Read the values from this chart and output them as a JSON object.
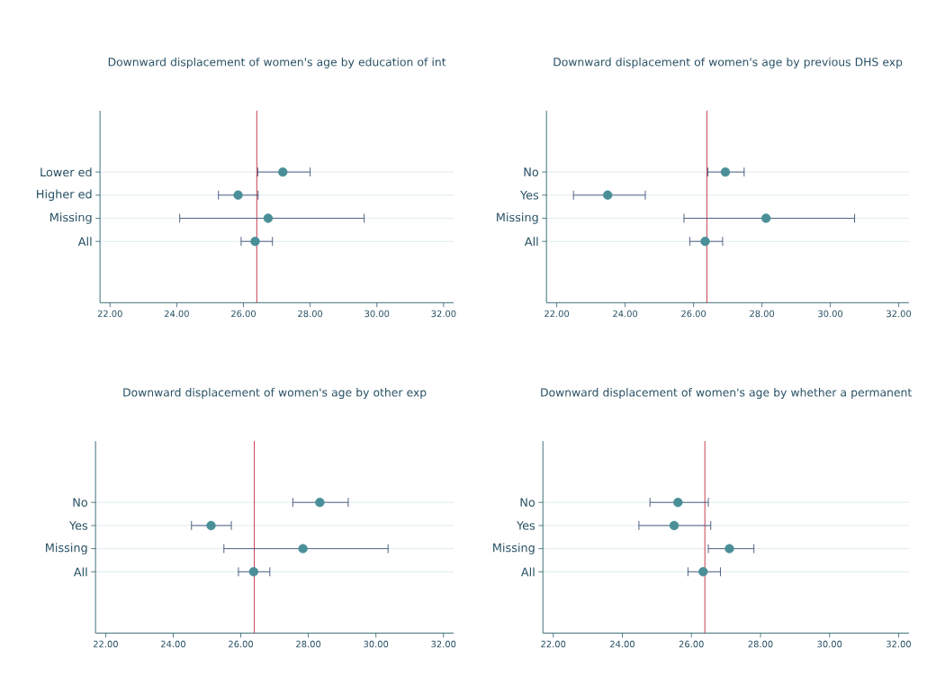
{
  "chart_data": [
    {
      "type": "scatter",
      "orientation": "horizontal",
      "title": "Downward displacement of women's age by education of int",
      "categories": [
        "Lower ed",
        "Higher ed",
        "Missing",
        "All"
      ],
      "values": [
        27.18,
        25.84,
        26.74,
        26.35
      ],
      "errors": [
        [
          26.43,
          28.0
        ],
        [
          25.25,
          26.44
        ],
        [
          24.09,
          29.62
        ],
        [
          25.93,
          26.87
        ]
      ],
      "color": "#4a8f98",
      "grid": "y",
      "xlim": [
        21.7,
        32.3
      ],
      "xticks": [
        {
          "value": 22,
          "label": "22.00"
        },
        {
          "value": 24,
          "label": "24.00"
        },
        {
          "value": 26,
          "label": "26.00"
        },
        {
          "value": 28,
          "label": "28.00"
        },
        {
          "value": 30,
          "label": "30.00"
        },
        {
          "value": 32,
          "label": "32.00"
        }
      ],
      "ref_lines": [
        {
          "axis": "x",
          "value": 26.4,
          "color": "#c0283c"
        }
      ]
    },
    {
      "type": "scatter",
      "orientation": "horizontal",
      "title": "Downward displacement of women's age by previous DHS exp",
      "categories": [
        "No",
        "Yes",
        "Missing",
        "All"
      ],
      "values": [
        26.93,
        23.49,
        28.12,
        26.34
      ],
      "errors": [
        [
          26.42,
          27.48
        ],
        [
          22.49,
          24.59
        ],
        [
          25.72,
          30.71
        ],
        [
          25.89,
          26.85
        ]
      ],
      "color": "#4a8f98",
      "grid": "y",
      "xlim": [
        21.7,
        32.3
      ],
      "xticks": [
        {
          "value": 22,
          "label": "22.00"
        },
        {
          "value": 24,
          "label": "24.00"
        },
        {
          "value": 26,
          "label": "26.00"
        },
        {
          "value": 28,
          "label": "28.00"
        },
        {
          "value": 30,
          "label": "30.00"
        },
        {
          "value": 32,
          "label": "32.00"
        }
      ],
      "ref_lines": [
        {
          "axis": "x",
          "value": 26.39,
          "color": "#c0283c"
        }
      ]
    },
    {
      "type": "scatter",
      "orientation": "horizontal",
      "title": "Downward displacement of women's age by other exp",
      "categories": [
        "No",
        "Yes",
        "Missing",
        "All"
      ],
      "values": [
        28.34,
        25.12,
        27.84,
        26.38
      ],
      "errors": [
        [
          27.54,
          29.18
        ],
        [
          24.54,
          25.72
        ],
        [
          25.5,
          30.36
        ],
        [
          25.93,
          26.86
        ]
      ],
      "color": "#4a8f98",
      "grid": "y",
      "xlim": [
        21.7,
        32.3
      ],
      "xticks": [
        {
          "value": 22,
          "label": "22.00"
        },
        {
          "value": 24,
          "label": "24.00"
        },
        {
          "value": 26,
          "label": "26.00"
        },
        {
          "value": 28,
          "label": "28.00"
        },
        {
          "value": 30,
          "label": "30.00"
        },
        {
          "value": 32,
          "label": "32.00"
        }
      ],
      "ref_lines": [
        {
          "axis": "x",
          "value": 26.4,
          "color": "#c0283c"
        }
      ]
    },
    {
      "type": "scatter",
      "orientation": "horizontal",
      "title": "Downward displacement of women's age by whether a permanent",
      "categories": [
        "No",
        "Yes",
        "Missing",
        "All"
      ],
      "values": [
        25.61,
        25.5,
        27.1,
        26.34
      ],
      "errors": [
        [
          24.8,
          26.49
        ],
        [
          24.48,
          26.56
        ],
        [
          26.49,
          27.81
        ],
        [
          25.9,
          26.84
        ]
      ],
      "color": "#4a8f98",
      "grid": "y",
      "xlim": [
        21.7,
        32.3
      ],
      "xticks": [
        {
          "value": 22,
          "label": "22.00"
        },
        {
          "value": 24,
          "label": "24.00"
        },
        {
          "value": 26,
          "label": "26.00"
        },
        {
          "value": 28,
          "label": "28.00"
        },
        {
          "value": 30,
          "label": "30.00"
        },
        {
          "value": 32,
          "label": "32.00"
        }
      ],
      "ref_lines": [
        {
          "axis": "x",
          "value": 26.39,
          "color": "#c0283c"
        }
      ]
    }
  ]
}
